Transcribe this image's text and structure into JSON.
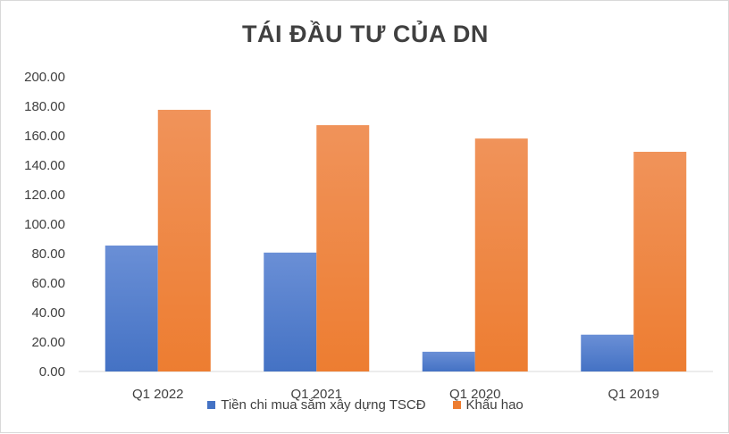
{
  "chart_data": {
    "type": "bar",
    "title": "TÁI ĐẦU TƯ CỦA DN",
    "categories": [
      "Q1 2022",
      "Q1 2021",
      "Q1 2020",
      "Q1 2019"
    ],
    "series": [
      {
        "name": "Tiền chi mua sắm xây dựng TSCĐ",
        "values": [
          85.5,
          80.7,
          13.4,
          25.0
        ],
        "color": "#4472c4"
      },
      {
        "name": "Khấu hao",
        "values": [
          177.6,
          167.2,
          158.1,
          149.1
        ],
        "color": "#ed7d31"
      }
    ],
    "y_ticks": [
      "0.00",
      "20.00",
      "40.00",
      "60.00",
      "80.00",
      "100.00",
      "120.00",
      "140.00",
      "160.00",
      "180.00",
      "200.00"
    ],
    "ylim": [
      0,
      200
    ],
    "grid": false,
    "legend_position": "bottom"
  }
}
